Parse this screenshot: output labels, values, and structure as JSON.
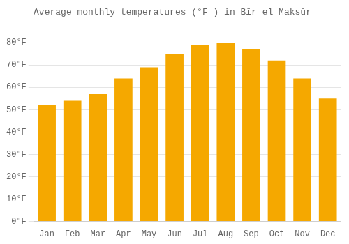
{
  "chart_data": {
    "type": "bar",
    "title": "Average monthly temperatures (°F ) in Bīr el Maksūr",
    "categories": [
      "Jan",
      "Feb",
      "Mar",
      "Apr",
      "May",
      "Jun",
      "Jul",
      "Aug",
      "Sep",
      "Oct",
      "Nov",
      "Dec"
    ],
    "values": [
      52,
      54,
      57,
      64,
      69,
      75,
      79,
      80,
      77,
      72,
      64,
      55
    ],
    "color": "#F5A800",
    "ylim": [
      0,
      88
    ],
    "yticks": [
      {
        "value": 0,
        "label": "0°F"
      },
      {
        "value": 10,
        "label": "10°F"
      },
      {
        "value": 20,
        "label": "20°F"
      },
      {
        "value": 30,
        "label": "30°F"
      },
      {
        "value": 40,
        "label": "40°F"
      },
      {
        "value": 50,
        "label": "50°F"
      },
      {
        "value": 60,
        "label": "60°F"
      },
      {
        "value": 70,
        "label": "70°F"
      },
      {
        "value": 80,
        "label": "80°F"
      }
    ],
    "grid": true
  }
}
